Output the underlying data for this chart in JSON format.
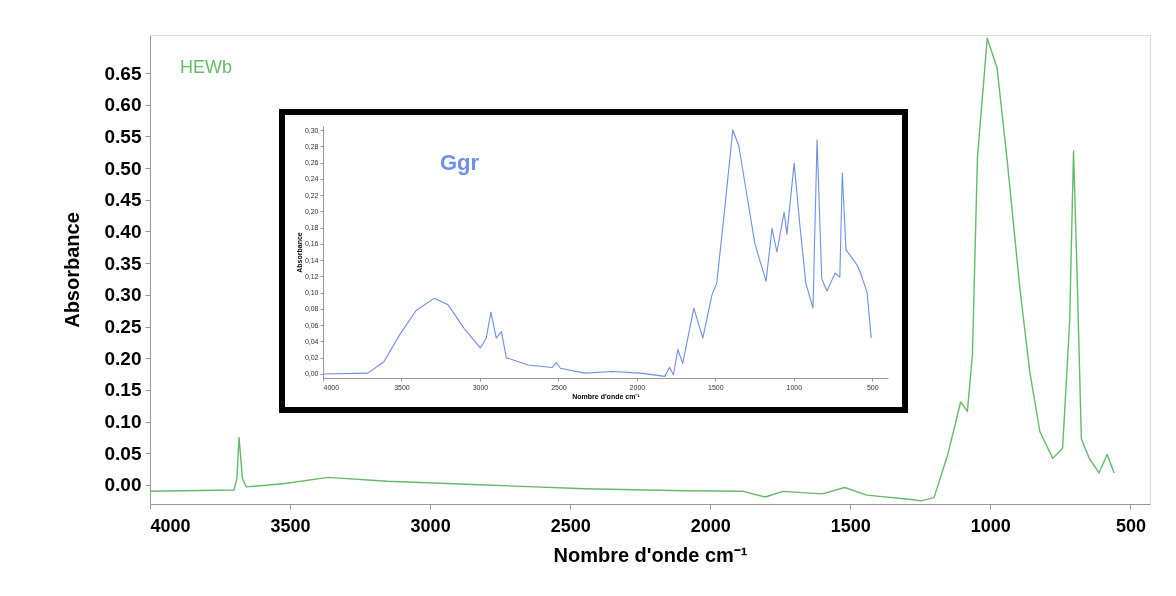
{
  "chart_data": [
    {
      "type": "line",
      "xlabel": "Nombre d'onde cm⁻¹",
      "ylabel": "Absorbance",
      "xlim": [
        4000,
        430
      ],
      "ylim": [
        -0.03,
        0.71
      ],
      "xticks": [
        4000,
        3500,
        3000,
        2500,
        2000,
        1500,
        1000,
        500
      ],
      "yticks": [
        {
          "value": 0,
          "label": "0.00"
        },
        {
          "value": 0.05,
          "label": "0.05"
        },
        {
          "value": 0.1,
          "label": "0.10"
        },
        {
          "value": 0.15,
          "label": "0.15"
        },
        {
          "value": 0.2,
          "label": "0.20"
        },
        {
          "value": 0.25,
          "label": "0.25"
        },
        {
          "value": 0.3,
          "label": "0.30"
        },
        {
          "value": 0.35,
          "label": "0.35"
        },
        {
          "value": 0.4,
          "label": "0.40"
        },
        {
          "value": 0.45,
          "label": "0.45"
        },
        {
          "value": 0.5,
          "label": "0.50"
        },
        {
          "value": 0.55,
          "label": "0.55"
        },
        {
          "value": 0.6,
          "label": "0.60"
        },
        {
          "value": 0.65,
          "label": "0.65"
        }
      ],
      "series": [
        {
          "name": "HEWb",
          "color": "#66bb6a",
          "x": [
            4000,
            3700,
            3690,
            3682,
            3670,
            3656,
            3524,
            3365,
            3153,
            2800,
            2447,
            2094,
            1882,
            1803,
            1741,
            1600,
            1520,
            1441,
            1282,
            1247,
            1201,
            1152,
            1106,
            1082,
            1064,
            1046,
            1011,
            976,
            941,
            894,
            859,
            823,
            777,
            742,
            717,
            703,
            692,
            675,
            647,
            612,
            583,
            558
          ],
          "values": [
            -0.01,
            -0.008,
            0.01,
            0.075,
            0.01,
            -0.003,
            0.002,
            0.012,
            0.006,
            0.0,
            -0.006,
            -0.009,
            -0.01,
            -0.019,
            -0.01,
            -0.014,
            -0.004,
            -0.016,
            -0.023,
            -0.025,
            -0.02,
            0.048,
            0.131,
            0.116,
            0.205,
            0.517,
            0.705,
            0.658,
            0.517,
            0.308,
            0.178,
            0.084,
            0.042,
            0.058,
            0.256,
            0.527,
            0.36,
            0.073,
            0.042,
            0.019,
            0.048,
            0.019
          ]
        }
      ]
    },
    {
      "type": "line",
      "xlabel": "Nombre d'onde cm⁻¹",
      "ylabel": "Absorbance",
      "xlim": [
        4000,
        400
      ],
      "ylim": [
        -0.005,
        0.305
      ],
      "xticks": [
        4000,
        3500,
        3000,
        2500,
        2000,
        1500,
        1000,
        500
      ],
      "yticks": [
        {
          "value": 0,
          "label": "0,00"
        },
        {
          "value": 0.02,
          "label": "0,02"
        },
        {
          "value": 0.04,
          "label": "0,04"
        },
        {
          "value": 0.06,
          "label": "0,06"
        },
        {
          "value": 0.08,
          "label": "0,08"
        },
        {
          "value": 0.1,
          "label": "0,10"
        },
        {
          "value": 0.12,
          "label": "0,12"
        },
        {
          "value": 0.14,
          "label": "0,14"
        },
        {
          "value": 0.16,
          "label": "0,16"
        },
        {
          "value": 0.18,
          "label": "0,18"
        },
        {
          "value": 0.2,
          "label": "0,20"
        },
        {
          "value": 0.22,
          "label": "0,22"
        },
        {
          "value": 0.24,
          "label": "0,24"
        },
        {
          "value": 0.26,
          "label": "0,26"
        },
        {
          "value": 0.28,
          "label": "0,28"
        },
        {
          "value": 0.3,
          "label": "0,30"
        }
      ],
      "series": [
        {
          "name": "Ggr",
          "color": "#6f8fe8",
          "x": [
            4000,
            3714,
            3612,
            3509,
            3407,
            3292,
            3203,
            3101,
            2998,
            2960,
            2930,
            2896,
            2863,
            2832,
            2692,
            2539,
            2513,
            2488,
            2334,
            2155,
            1977,
            1823,
            1792,
            1767,
            1739,
            1708,
            1637,
            1580,
            1522,
            1491,
            1440,
            1389,
            1351,
            1248,
            1177,
            1139,
            1108,
            1062,
            1044,
            998,
            962,
            924,
            878,
            852,
            822,
            789,
            737,
            707,
            691,
            668,
            597,
            571,
            533,
            507
          ],
          "values": [
            0.0,
            0.001,
            0.015,
            0.049,
            0.078,
            0.093,
            0.085,
            0.056,
            0.032,
            0.044,
            0.076,
            0.044,
            0.052,
            0.02,
            0.011,
            0.008,
            0.014,
            0.007,
            0.001,
            0.003,
            0.001,
            -0.003,
            0.008,
            -0.001,
            0.03,
            0.013,
            0.081,
            0.044,
            0.097,
            0.112,
            0.204,
            0.3,
            0.281,
            0.16,
            0.114,
            0.179,
            0.15,
            0.199,
            0.172,
            0.259,
            0.184,
            0.112,
            0.081,
            0.288,
            0.117,
            0.102,
            0.124,
            0.119,
            0.247,
            0.153,
            0.134,
            0.122,
            0.1,
            0.044
          ]
        }
      ]
    }
  ]
}
